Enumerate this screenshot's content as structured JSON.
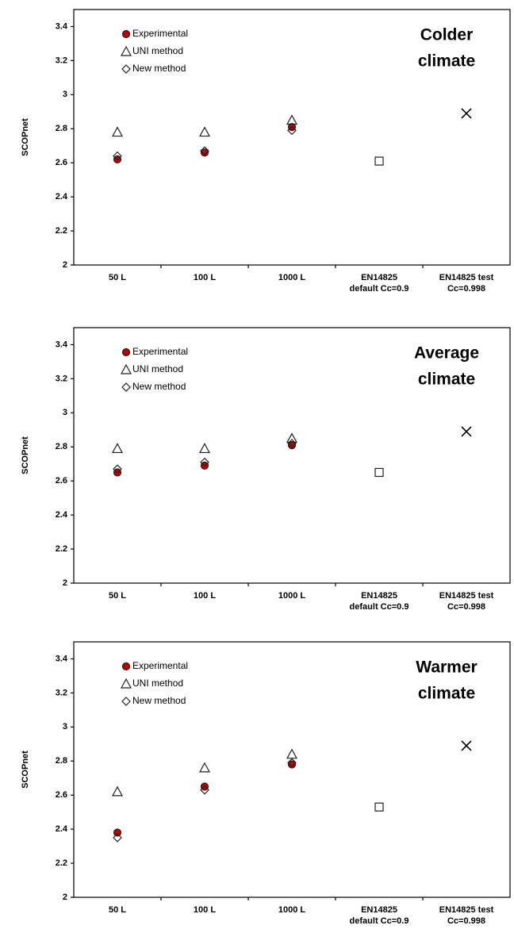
{
  "chart_data": [
    {
      "type": "scatter",
      "ylabel": "SCOPnet",
      "annotation": [
        "Colder",
        "climate"
      ],
      "legend": "upper left",
      "categories": [
        [
          "50 L"
        ],
        [
          "100 L"
        ],
        [
          "1000 L"
        ],
        [
          "EN14825",
          "default Cc=0.9"
        ],
        [
          "EN14825 test",
          "Cc=0.998"
        ]
      ],
      "series": [
        {
          "name": "Experimental",
          "marker": "circle",
          "color": "#c00000",
          "values": [
            2.62,
            2.66,
            2.81,
            null,
            null
          ]
        },
        {
          "name": "UNI method",
          "marker": "triangle",
          "color": "#ffffff",
          "values": [
            2.78,
            2.78,
            2.85,
            null,
            null
          ]
        },
        {
          "name": "New method",
          "marker": "diamond",
          "color": "#ffffff",
          "values": [
            2.64,
            2.67,
            2.79,
            null,
            null
          ]
        },
        {
          "marker": "square",
          "color": "#ffffff",
          "values": [
            null,
            null,
            null,
            2.61,
            null
          ]
        },
        {
          "marker": "x",
          "color": "#000000",
          "values": [
            null,
            null,
            null,
            null,
            2.89
          ]
        }
      ],
      "ylim": [
        2,
        3.5
      ],
      "yticks": [
        2,
        2.2,
        2.4,
        2.6,
        2.8,
        3,
        3.2,
        3.4
      ]
    },
    {
      "type": "scatter",
      "ylabel": "SCOPnet",
      "annotation": [
        "Average",
        "climate"
      ],
      "legend": "upper left",
      "categories": [
        [
          "50 L"
        ],
        [
          "100 L"
        ],
        [
          "1000 L"
        ],
        [
          "EN14825",
          "default Cc=0.9"
        ],
        [
          "EN14825 test",
          "Cc=0.998"
        ]
      ],
      "series": [
        {
          "name": "Experimental",
          "marker": "circle",
          "color": "#c00000",
          "values": [
            2.65,
            2.69,
            2.81,
            null,
            null
          ]
        },
        {
          "name": "UNI method",
          "marker": "triangle",
          "color": "#ffffff",
          "values": [
            2.79,
            2.79,
            2.85,
            null,
            null
          ]
        },
        {
          "name": "New method",
          "marker": "diamond",
          "color": "#ffffff",
          "values": [
            2.67,
            2.71,
            2.82,
            null,
            null
          ]
        },
        {
          "marker": "square",
          "color": "#ffffff",
          "values": [
            null,
            null,
            null,
            2.65,
            null
          ]
        },
        {
          "marker": "x",
          "color": "#000000",
          "values": [
            null,
            null,
            null,
            null,
            2.89
          ]
        }
      ],
      "ylim": [
        2,
        3.5
      ],
      "yticks": [
        2,
        2.2,
        2.4,
        2.6,
        2.8,
        3,
        3.2,
        3.4
      ]
    },
    {
      "type": "scatter",
      "ylabel": "SCOPnet",
      "annotation": [
        "Warmer",
        "climate"
      ],
      "legend": "upper left",
      "categories": [
        [
          "50 L"
        ],
        [
          "100 L"
        ],
        [
          "1000 L"
        ],
        [
          "EN14825",
          "default Cc=0.9"
        ],
        [
          "EN14825 test",
          "Cc=0.998"
        ]
      ],
      "series": [
        {
          "name": "Experimental",
          "marker": "circle",
          "color": "#c00000",
          "values": [
            2.38,
            2.65,
            2.78,
            null,
            null
          ]
        },
        {
          "name": "UNI method",
          "marker": "triangle",
          "color": "#ffffff",
          "values": [
            2.62,
            2.76,
            2.84,
            null,
            null
          ]
        },
        {
          "name": "New method",
          "marker": "diamond",
          "color": "#ffffff",
          "values": [
            2.35,
            2.63,
            2.79,
            null,
            null
          ]
        },
        {
          "marker": "square",
          "color": "#ffffff",
          "values": [
            null,
            null,
            null,
            2.53,
            null
          ]
        },
        {
          "marker": "x",
          "color": "#000000",
          "values": [
            null,
            null,
            null,
            null,
            2.89
          ]
        }
      ],
      "ylim": [
        2,
        3.5
      ],
      "yticks": [
        2,
        2.2,
        2.4,
        2.6,
        2.8,
        3,
        3.2,
        3.4
      ]
    }
  ]
}
